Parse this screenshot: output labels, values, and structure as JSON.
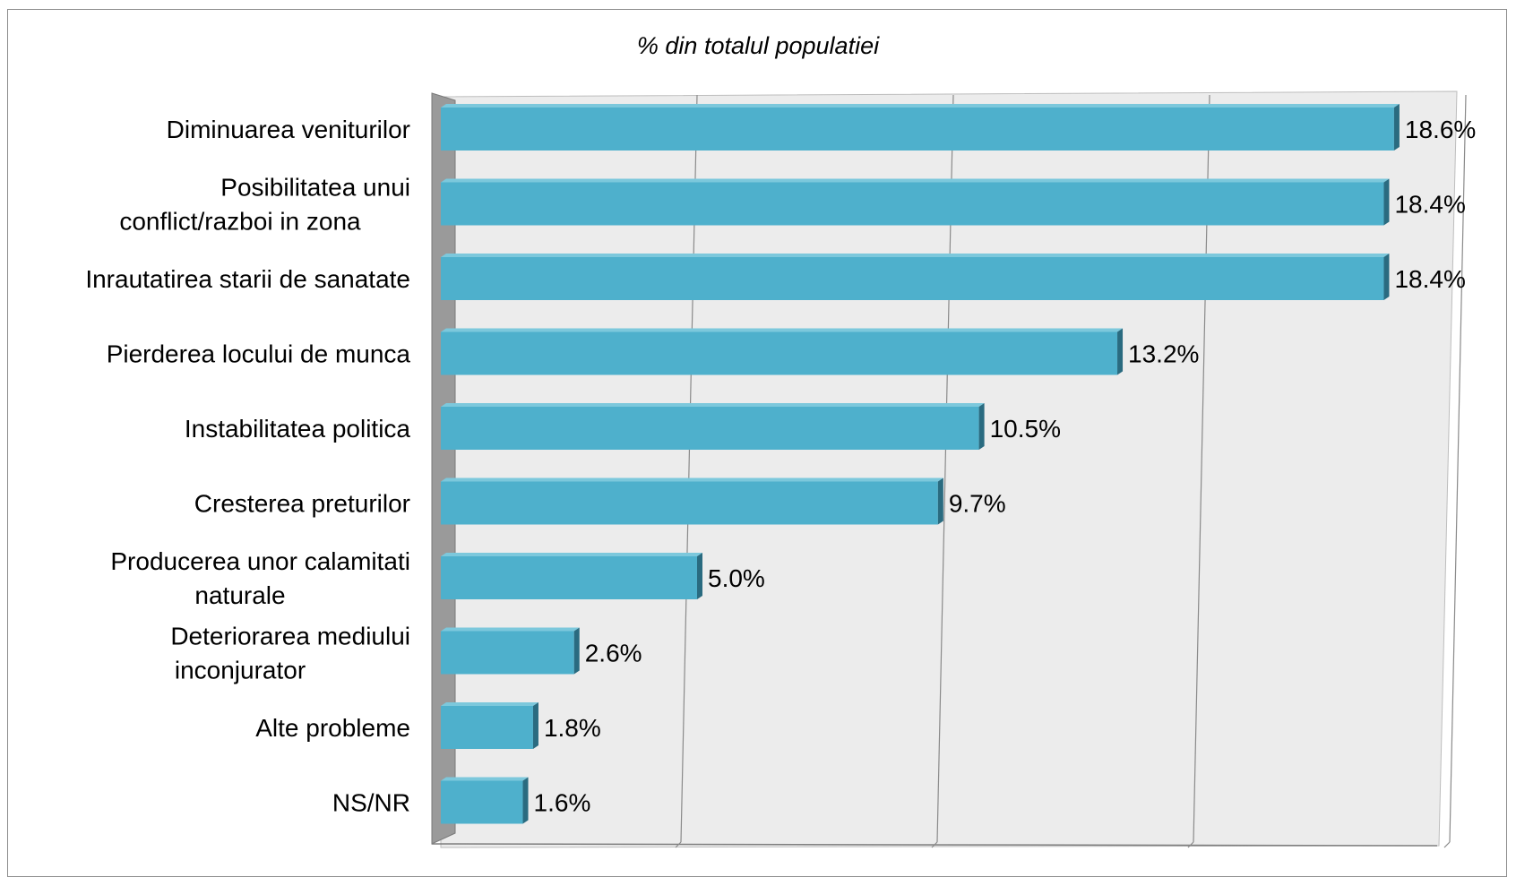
{
  "chart_data": {
    "type": "bar",
    "orientation": "horizontal",
    "title": "% din totalul populatiei",
    "categories": [
      [
        "Diminuarea veniturilor"
      ],
      [
        "Posibilitatea unui",
        "conflict/razboi in zona"
      ],
      [
        "Inrautatirea starii de sanatate"
      ],
      [
        "Pierderea locului de munca"
      ],
      [
        "Instabilitatea politica"
      ],
      [
        "Cresterea preturilor"
      ],
      [
        "Producerea unor calamitati",
        "naturale"
      ],
      [
        "Deteriorarea mediului",
        "inconjurator"
      ],
      [
        "Alte probleme"
      ],
      [
        "NS/NR"
      ]
    ],
    "values": [
      18.6,
      18.4,
      18.4,
      13.2,
      10.5,
      9.7,
      5.0,
      2.6,
      1.8,
      1.6
    ],
    "value_labels": [
      "18.6%",
      "18.4%",
      "18.4%",
      "13.2%",
      "10.5%",
      "9.7%",
      "5.0%",
      "2.6%",
      "1.8%",
      "1.6%"
    ],
    "xlim": [
      0,
      20
    ],
    "grid": true,
    "legend": "none",
    "colors": {
      "bar": "#4eb0cc",
      "bar_dark": "#2a6b80",
      "plot_wall": "#ececec",
      "side_wall": "#9a9a9a",
      "gridline": "#8a8a8a"
    }
  }
}
